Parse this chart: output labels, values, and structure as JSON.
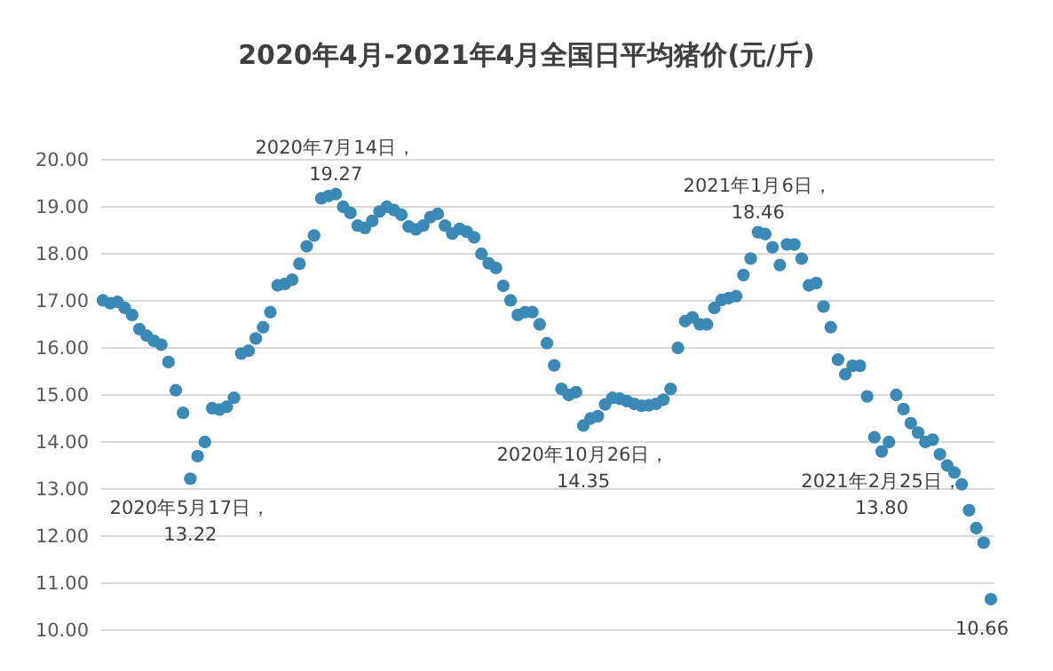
{
  "chart_data": {
    "type": "scatter",
    "title": "2020年4月-2021年4月全国日平均猪价(元/斤)",
    "categories": [
      null,
      null,
      null,
      null,
      null,
      null,
      null,
      null,
      null,
      null,
      null,
      null,
      null,
      null,
      null,
      null,
      null,
      null,
      null,
      null,
      null,
      null,
      null,
      null,
      null,
      null,
      null,
      null,
      null,
      null,
      null,
      null,
      null,
      null,
      null,
      null,
      null,
      null,
      null,
      null,
      null,
      null,
      null,
      null,
      null,
      null,
      null,
      null,
      null,
      null,
      null,
      null,
      null,
      null,
      null,
      null,
      null,
      null,
      null,
      null,
      null,
      null,
      null,
      null,
      null,
      null,
      null,
      null,
      null,
      null,
      null,
      null,
      null,
      null,
      null,
      null,
      null,
      null,
      null,
      null,
      null,
      null,
      null,
      null,
      null,
      null,
      null,
      null,
      null,
      null,
      null,
      null,
      null,
      null,
      null,
      null,
      null,
      null,
      null,
      null,
      null,
      null,
      null,
      null,
      null,
      null,
      null,
      null,
      null,
      null,
      null,
      null,
      null,
      null,
      null,
      null,
      null,
      null,
      null,
      null,
      null,
      null,
      null
    ],
    "series": [
      {
        "color": "#3a89b6",
        "values": [
          17.01,
          16.95,
          16.98,
          16.85,
          16.7,
          16.4,
          16.26,
          16.15,
          16.07,
          15.7,
          15.1,
          14.62,
          13.22,
          13.7,
          14.0,
          14.72,
          14.69,
          14.75,
          14.94,
          15.88,
          15.94,
          16.2,
          16.44,
          16.76,
          17.33,
          17.36,
          17.45,
          17.79,
          18.16,
          18.39,
          19.18,
          19.23,
          19.27,
          19.0,
          18.87,
          18.6,
          18.55,
          18.7,
          18.9,
          19.0,
          18.93,
          18.83,
          18.58,
          18.52,
          18.6,
          18.78,
          18.85,
          18.6,
          18.43,
          18.53,
          18.47,
          18.35,
          18.0,
          17.8,
          17.7,
          17.32,
          17.01,
          16.7,
          16.76,
          16.76,
          16.5,
          16.1,
          15.63,
          15.13,
          15.0,
          15.06,
          14.35,
          14.5,
          14.55,
          14.8,
          14.94,
          14.92,
          14.87,
          14.81,
          14.77,
          14.78,
          14.81,
          14.9,
          15.13,
          16.0,
          16.57,
          16.65,
          16.5,
          16.5,
          16.85,
          17.02,
          17.06,
          17.1,
          17.55,
          17.9,
          18.46,
          18.42,
          18.14,
          17.76,
          18.2,
          18.2,
          17.9,
          17.33,
          17.38,
          16.88,
          16.44,
          15.75,
          15.44,
          15.62,
          15.62,
          14.97,
          14.1,
          13.8,
          14.0,
          15.0,
          14.7,
          14.4,
          14.2,
          14.0,
          14.05,
          13.74,
          13.5,
          13.35,
          13.1,
          12.55,
          12.17,
          11.86,
          10.66
        ]
      }
    ],
    "ylim": [
      10,
      20
    ],
    "yticks": [
      {
        "value": 10,
        "label": "10.00"
      },
      {
        "value": 11,
        "label": "11.00"
      },
      {
        "value": 12,
        "label": "12.00"
      },
      {
        "value": 13,
        "label": "13.00"
      },
      {
        "value": 14,
        "label": "14.00"
      },
      {
        "value": 15,
        "label": "15.00"
      },
      {
        "value": 16,
        "label": "16.00"
      },
      {
        "value": 17,
        "label": "17.00"
      },
      {
        "value": 18,
        "label": "18.00"
      },
      {
        "value": 19,
        "label": "19.00"
      },
      {
        "value": 20,
        "label": "20.00"
      }
    ],
    "tick_labels": "y",
    "grid": "y",
    "marker": "circle",
    "annotations": [
      {
        "text": "2020年5月17日，\n13.22",
        "y": 13.22
      },
      {
        "text": "2020年7月14日，\n19.27",
        "y": 19.27
      },
      {
        "text": "2020年10月26日，\n14.35",
        "y": 14.35
      },
      {
        "text": "2021年1月6日，\n18.46",
        "y": 18.46
      },
      {
        "text": "2021年2月25日，\n13.80",
        "y": 13.8
      },
      {
        "text": "10.66",
        "y": 10.66
      }
    ]
  }
}
